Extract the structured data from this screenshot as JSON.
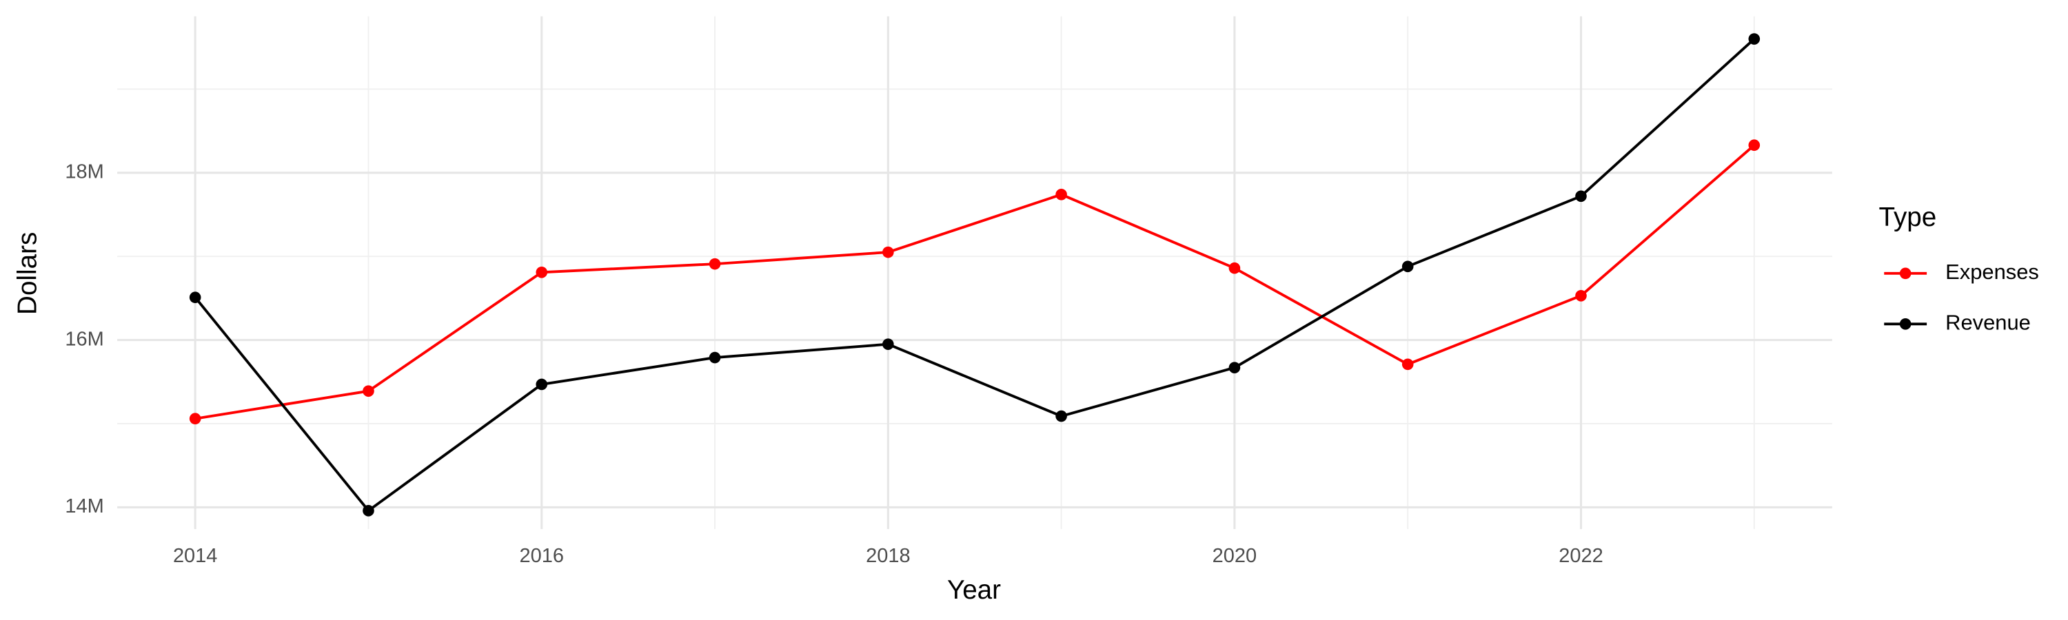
{
  "chart_data": {
    "type": "line",
    "x_label": "Year",
    "y_label": "Dollars",
    "x": [
      2014,
      2015,
      2016,
      2017,
      2018,
      2019,
      2020,
      2021,
      2022,
      2023
    ],
    "series": [
      {
        "name": "Expenses",
        "color": "#ff0000",
        "values": [
          15060000,
          15390000,
          16810000,
          16910000,
          17050000,
          17740000,
          16860000,
          15710000,
          16530000,
          18330000
        ]
      },
      {
        "name": "Revenue",
        "color": "#000000",
        "values": [
          16510000,
          13960000,
          15470000,
          15790000,
          15950000,
          15090000,
          15670000,
          16880000,
          17720000,
          19600000
        ]
      }
    ],
    "xlim": [
      2013.55,
      2023.45
    ],
    "xticks": [
      2014,
      2016,
      2018,
      2020,
      2022
    ],
    "ylim": [
      13740000,
      19870000
    ],
    "yticks": [
      {
        "value": 14000000,
        "label": "14M"
      },
      {
        "value": 16000000,
        "label": "16M"
      },
      {
        "value": 18000000,
        "label": "18M"
      }
    ],
    "grid": true,
    "legend_title": "Type",
    "legend_position": "right"
  }
}
